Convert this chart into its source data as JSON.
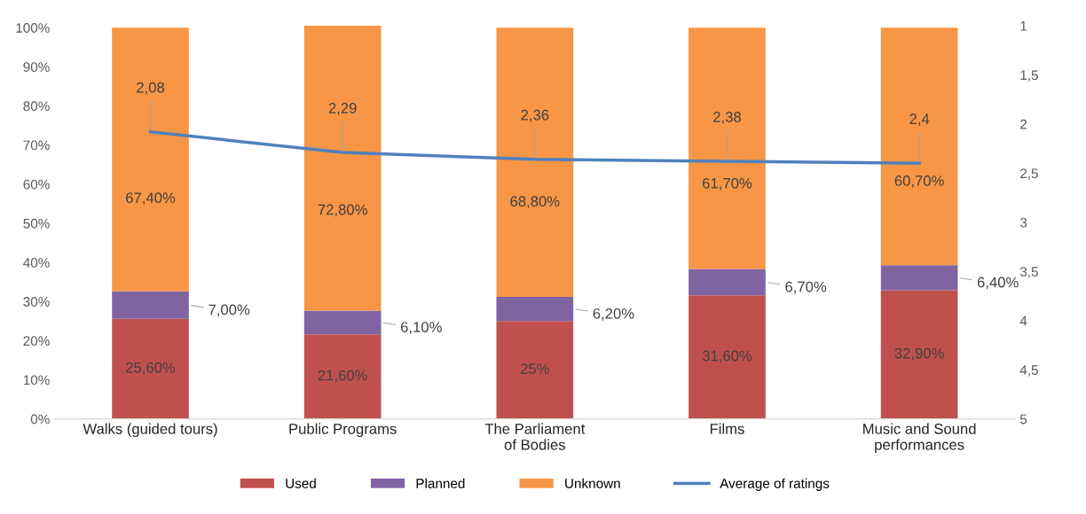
{
  "chart_data": {
    "type": "bar",
    "stacked": true,
    "categories": [
      "Walks (guided tours)",
      "Public Programs",
      "The Parliament\nof Bodies",
      "Films",
      "Music and Sound\nperformances"
    ],
    "series": [
      {
        "name": "Used",
        "color": "#c0504d",
        "values": [
          25.6,
          21.6,
          25,
          31.6,
          32.9
        ],
        "value_labels": [
          "25,60%",
          "21,60%",
          "25%",
          "31,60%",
          "32,90%"
        ]
      },
      {
        "name": "Planned",
        "color": "#8064a2",
        "values": [
          7.0,
          6.1,
          6.2,
          6.7,
          6.4
        ],
        "value_labels": [
          "7,00%",
          "6,10%",
          "6,20%",
          "6,70%",
          "6,40%"
        ]
      },
      {
        "name": "Unknown",
        "color": "#f79646",
        "values": [
          67.4,
          72.8,
          68.8,
          61.7,
          60.7
        ],
        "value_labels": [
          "67,40%",
          "72,80%",
          "68,80%",
          "61,70%",
          "60,70%"
        ]
      },
      {
        "name": "Average of ratings",
        "type": "line",
        "axis": "y2",
        "color": "#4f81bd",
        "values": [
          2.08,
          2.29,
          2.36,
          2.38,
          2.4
        ],
        "value_labels": [
          "2,08",
          "2,29",
          "2,36",
          "2,38",
          "2,4"
        ]
      }
    ],
    "ylim": [
      0,
      100.5
    ],
    "yticks": [
      {
        "value": 0,
        "label": "0%"
      },
      {
        "value": 10,
        "label": "10%"
      },
      {
        "value": 20,
        "label": "20%"
      },
      {
        "value": 30,
        "label": "30%"
      },
      {
        "value": 40,
        "label": "40%"
      },
      {
        "value": 50,
        "label": "50%"
      },
      {
        "value": 60,
        "label": "60%"
      },
      {
        "value": 70,
        "label": "70%"
      },
      {
        "value": 80,
        "label": "80%"
      },
      {
        "value": 90,
        "label": "90%"
      },
      {
        "value": 100,
        "label": "100%"
      }
    ],
    "y2lim": [
      5,
      1
    ],
    "y2ticks": [
      1,
      {
        "value": 1.5,
        "label": "1,5"
      },
      2,
      {
        "value": 2.5,
        "label": "2,5"
      },
      3,
      {
        "value": 3.5,
        "label": "3,5"
      },
      4,
      {
        "value": 4.5,
        "label": "4,5"
      },
      5
    ],
    "legend": "bottom",
    "grid": false,
    "marker": "none",
    "line_style": "solid"
  }
}
